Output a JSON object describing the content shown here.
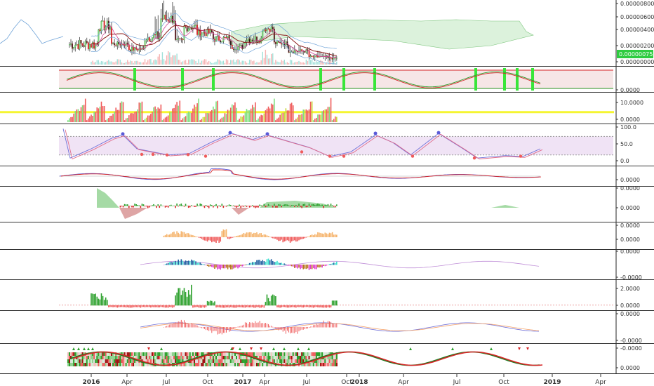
{
  "chart_data": {
    "type": "candlestick-with-indicator-panes",
    "x_axis": {
      "ticks": [
        "2016",
        "Apr",
        "Jul",
        "Oct",
        "2017",
        "Apr",
        "Jul",
        "Oct",
        "2018",
        "Apr",
        "Jul",
        "Oct",
        "2019",
        "Apr"
      ],
      "tick_index": [
        0,
        0,
        0,
        0,
        52,
        0,
        0,
        0,
        104,
        0,
        0,
        0,
        156,
        0
      ]
    },
    "price_pane": {
      "y_ticks": [
        "0.00000800",
        "0.00000600",
        "0.00000400",
        "0.00000200",
        "0.00000000"
      ],
      "y_tick_values": [
        8,
        6,
        4,
        2,
        0
      ],
      "last_price_label": "0.00000075",
      "last_price_value": 0.75,
      "ylim": [
        0,
        8.5
      ]
    },
    "panes": [
      {
        "name": "stoch-band",
        "y_ticks": [
          "0.0000"
        ],
        "y_tick_values": [
          0
        ],
        "ylim": [
          0,
          100
        ]
      },
      {
        "name": "bar-count",
        "y_ticks": [
          "10.0000",
          "0.0000"
        ],
        "y_tick_values": [
          10,
          0
        ],
        "ylim": [
          0,
          14
        ],
        "threshold": 5
      },
      {
        "name": "rsi",
        "y_ticks": [
          "100.0",
          "50.0",
          "0.0"
        ],
        "y_tick_values": [
          100,
          50,
          0
        ],
        "ylim": [
          -10,
          115
        ],
        "band": [
          20,
          80
        ]
      },
      {
        "name": "macd-lines",
        "y_ticks": [
          "0.0000"
        ],
        "y_tick_values": [
          0
        ],
        "ylim": [
          -1,
          1
        ]
      },
      {
        "name": "area-histogram",
        "y_ticks": [
          "0.0000",
          "0.0000"
        ],
        "y_tick_values": [
          1,
          0
        ],
        "ylim": [
          -1,
          1.2
        ]
      },
      {
        "name": "orange-histogram",
        "y_ticks": [
          "0.0000",
          "0.0000"
        ],
        "y_tick_values": [
          1,
          0
        ],
        "ylim": [
          -1,
          1.2
        ]
      },
      {
        "name": "cyan-histogram",
        "y_ticks": [
          "0.0000",
          "-0.0000"
        ],
        "y_tick_values": [
          1,
          -1
        ],
        "ylim": [
          -1.2,
          1.2
        ]
      },
      {
        "name": "volume-osc",
        "y_ticks": [
          "2.0000",
          "0.0000"
        ],
        "y_tick_values": [
          2,
          0
        ],
        "ylim": [
          -0.4,
          2.6
        ]
      },
      {
        "name": "red-histogram",
        "y_ticks": [
          "0.0000",
          "-0.0000"
        ],
        "y_tick_values": [
          1,
          -1
        ],
        "ylim": [
          -1.2,
          1.2
        ]
      },
      {
        "name": "heatmap-wave",
        "y_ticks": [
          "-0.0000",
          "0.0000"
        ],
        "y_tick_values": [
          0.6,
          -0.6
        ],
        "ylim": [
          -1,
          1
        ]
      }
    ]
  }
}
